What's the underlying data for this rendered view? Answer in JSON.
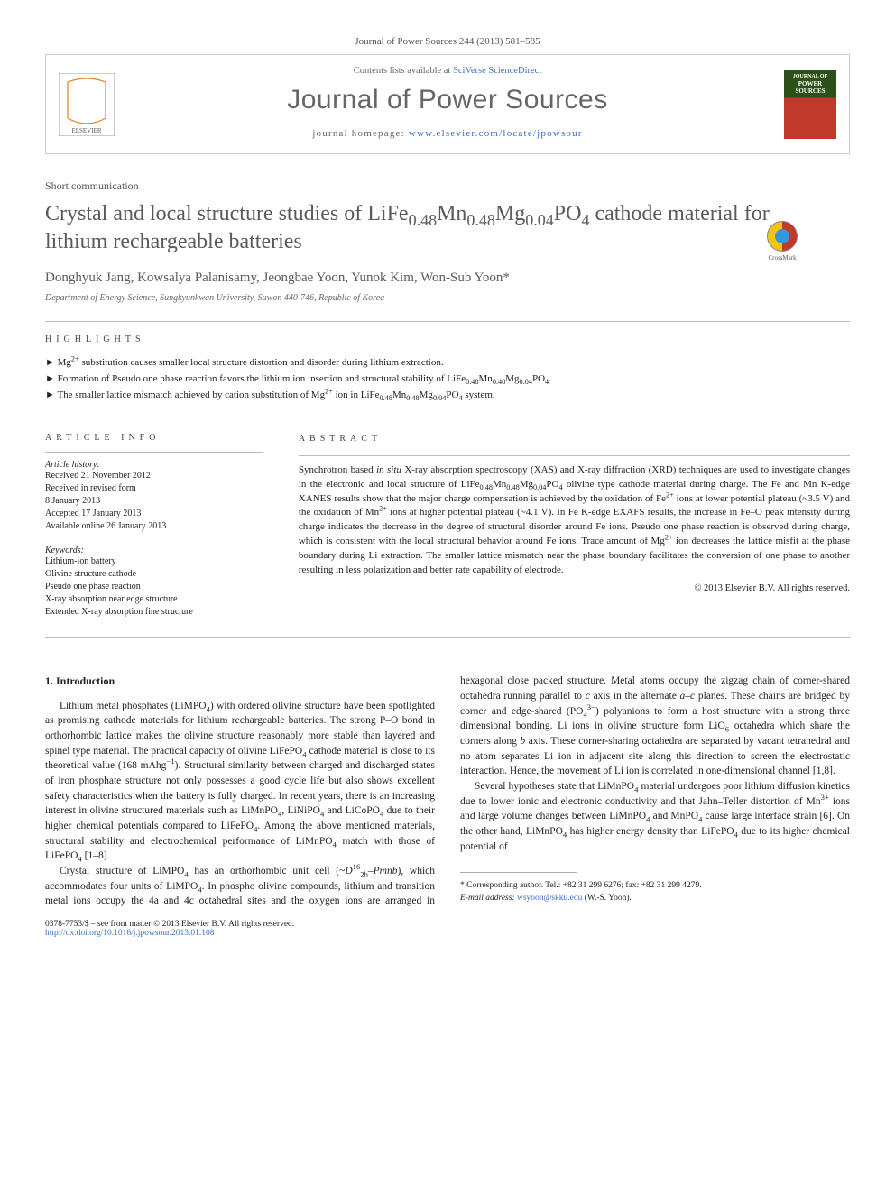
{
  "citation": "Journal of Power Sources 244 (2013) 581–585",
  "header": {
    "contents_prefix": "Contents lists available at ",
    "contents_link": "SciVerse ScienceDirect",
    "journal_title": "Journal of Power Sources",
    "homepage_prefix": "journal homepage: ",
    "homepage_url": "www.elsevier.com/locate/jpowsour",
    "cover_label_top": "JOURNAL OF",
    "cover_label_main": "POWER SOURCES"
  },
  "article_type": "Short communication",
  "title_html": "Crystal and local structure studies of LiFe<sub>0.48</sub>Mn<sub>0.48</sub>Mg<sub>0.04</sub>PO<sub>4</sub> cathode material for lithium rechargeable batteries",
  "crossmark_label": "CrossMark",
  "authors": "Donghyuk Jang, Kowsalya Palanisamy, Jeongbae Yoon, Yunok Kim, Won-Sub Yoon*",
  "affiliation": "Department of Energy Science, Sungkyunkwan University, Suwon 440-746, Republic of Korea",
  "highlights_label": "HIGHLIGHTS",
  "highlights": [
    "Mg<sup>2+</sup> substitution causes smaller local structure distortion and disorder during lithium extraction.",
    "Formation of Pseudo one phase reaction favors the lithium ion insertion and structural stability of LiFe<sub>0.48</sub>Mn<sub>0.48</sub>Mg<sub>0.04</sub>PO<sub>4</sub>.",
    "The smaller lattice mismatch achieved by cation substitution of Mg<sup>2+</sup> ion in LiFe<sub>0.48</sub>Mn<sub>0.48</sub>Mg<sub>0.04</sub>PO<sub>4</sub> system."
  ],
  "article_info_label": "ARTICLE INFO",
  "history_label": "Article history:",
  "history": [
    "Received 21 November 2012",
    "Received in revised form",
    "8 January 2013",
    "Accepted 17 January 2013",
    "Available online 26 January 2013"
  ],
  "keywords_label": "Keywords:",
  "keywords": [
    "Lithium-ion battery",
    "Olivine structure cathode",
    "Pseudo one phase reaction",
    "X-ray absorption near edge structure",
    "Extended X-ray absorption fine structure"
  ],
  "abstract_label": "ABSTRACT",
  "abstract_html": "Synchrotron based <i>in situ</i> X-ray absorption spectroscopy (XAS) and X-ray diffraction (XRD) techniques are used to investigate changes in the electronic and local structure of LiFe<sub>0.48</sub>Mn<sub>0.48</sub>Mg<sub>0.04</sub>PO<sub>4</sub> olivine type cathode material during charge. The Fe and Mn K-edge XANES results show that the major charge compensation is achieved by the oxidation of Fe<sup>2+</sup> ions at lower potential plateau (~3.5 V) and the oxidation of Mn<sup>2+</sup> ions at higher potential plateau (~4.1 V). In Fe K-edge EXAFS results, the increase in Fe–O peak intensity during charge indicates the decrease in the degree of structural disorder around Fe ions. Pseudo one phase reaction is observed during charge, which is consistent with the local structural behavior around Fe ions. Trace amount of Mg<sup>2+</sup> ion decreases the lattice misfit at the phase boundary during Li extraction. The smaller lattice mismatch near the phase boundary facilitates the conversion of one phase to another resulting in less polarization and better rate capability of electrode.",
  "copyright": "© 2013 Elsevier B.V. All rights reserved.",
  "intro_heading": "1. Introduction",
  "intro_paras": [
    "Lithium metal phosphates (LiMPO<sub>4</sub>) with ordered olivine structure have been spotlighted as promising cathode materials for lithium rechargeable batteries. The strong P–O bond in orthorhombic lattice makes the olivine structure reasonably more stable than layered and spinel type material. The practical capacity of olivine LiFePO<sub>4</sub> cathode material is close to its theoretical value (168 mAhg<sup>−1</sup>). Structural similarity between charged and discharged states of iron phosphate structure not only possesses a good cycle life but also shows excellent safety characteristics when the battery is fully charged. In recent years, there is an increasing interest in olivine structured materials such as LiMnPO<sub>4</sub>, LiNiPO<sub>4</sub> and LiCoPO<sub>4</sub> due to their higher chemical potentials compared to LiFePO<sub>4</sub>. Among the above mentioned materials, structural stability and electrochemical performance of LiMnPO<sub>4</sub> match with those of LiFePO<sub>4</sub> [1–8].",
    "Crystal structure of LiMPO<sub>4</sub> has an orthorhombic unit cell (~<i>D</i><sup>16</sup><sub>2h</sub>–<i>Pmnb</i>), which accommodates four units of LiMPO<sub>4</sub>. In phospho olivine compounds, lithium and transition metal ions occupy the 4a and 4c octahedral sites and the oxygen ions are arranged in hexagonal close packed structure. Metal atoms occupy the zigzag chain of corner-shared octahedra running parallel to <i>c</i> axis in the alternate <i>a</i>–<i>c</i> planes. These chains are bridged by corner and edge-shared (PO<sub>4</sub><sup>3−</sup>) polyanions to form a host structure with a strong three dimensional bonding. Li ions in olivine structure form LiO<sub>6</sub> octahedra which share the corners along <i>b</i> axis. These corner-sharing octahedra are separated by vacant tetrahedral and no atom separates Li ion in adjacent site along this direction to screen the electrostatic interaction. Hence, the movement of Li ion is correlated in one-dimensional channel [1,8].",
    "Several hypotheses state that LiMnPO<sub>4</sub> material undergoes poor lithium diffusion kinetics due to lower ionic and electronic conductivity and that Jahn–Teller distortion of Mn<sup>3+</sup> ions and large volume changes between LiMnPO<sub>4</sub> and MnPO<sub>4</sub> cause large interface strain [6]. On the other hand, LiMnPO<sub>4</sub> has higher energy density than LiFePO<sub>4</sub> due to its higher chemical potential of"
  ],
  "footnote": {
    "corresp": "* Corresponding author. Tel.: +82 31 299 6276; fax: +82 31 299 4279.",
    "email_label": "E-mail address:",
    "email": "wsyoon@skku.edu",
    "email_name": "(W.-S. Yoon)."
  },
  "footer": {
    "front_matter": "0378-7753/$ – see front matter © 2013 Elsevier B.V. All rights reserved.",
    "doi": "http://dx.doi.org/10.1016/j.jpowsour.2013.01.108"
  }
}
